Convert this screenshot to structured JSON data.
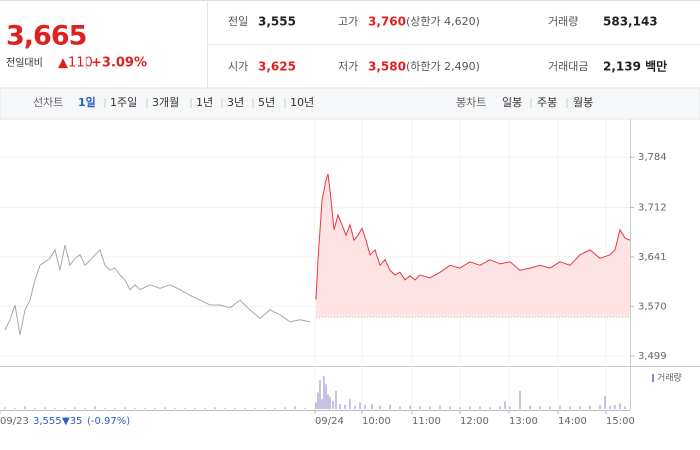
{
  "header": {
    "price": "3,665",
    "change_label": "전일대비",
    "change": "▲110",
    "change_pct": "+3.09%",
    "stats": [
      {
        "label": "전일",
        "value": "3,555"
      },
      {
        "label": "고가",
        "value": "3,760",
        "note": "(상한가 4,620)",
        "color": "#e0201f"
      },
      {
        "label": "거래량",
        "value": "583,143"
      },
      {
        "label": "시가",
        "value": "3,625",
        "color": "#e0201f"
      },
      {
        "label": "저가",
        "value": "3,580",
        "note": "(하한가 2,490)",
        "color": "#e0201f"
      },
      {
        "label": "거래대금",
        "value": "2,139 백만"
      }
    ]
  },
  "tabs": {
    "line_label": "선차트",
    "line": [
      "1일",
      "1주일",
      "3개월",
      "1년",
      "3년",
      "5년",
      "10년"
    ],
    "candle_label": "봉차트",
    "candle": [
      "일봉",
      "주봉",
      "월봉"
    ]
  },
  "footer": {
    "price": "3,555",
    "change": "▼35",
    "change_pct": "(-0.97%)"
  },
  "chart_data": {
    "type": "line",
    "xlim": [
      0,
      126
    ],
    "ylim": [
      3486,
      3823
    ],
    "yticks": [
      {
        "value": 3784,
        "label": "3,784"
      },
      {
        "value": 3712,
        "label": "3,712"
      },
      {
        "value": 3641,
        "label": "3,641"
      },
      {
        "value": 3570,
        "label": "3,570"
      },
      {
        "value": 3499,
        "label": "3,499"
      }
    ],
    "xticks": [
      {
        "value": 0,
        "label": "09/23"
      },
      {
        "value": 63,
        "label": "09/24"
      },
      {
        "value": 72.4,
        "label": "10:00"
      },
      {
        "value": 82.4,
        "label": "11:00"
      },
      {
        "value": 92,
        "label": "12:00"
      },
      {
        "value": 101.8,
        "label": "13:00"
      },
      {
        "value": 111.6,
        "label": "14:00"
      },
      {
        "value": 121.2,
        "label": "15:00"
      }
    ],
    "grid": true,
    "reference": 3555,
    "series": [
      {
        "color": "#a8a8a8",
        "x": [
          1,
          2,
          3,
          4,
          5,
          6,
          7,
          8,
          9,
          10,
          11,
          12,
          13,
          14,
          15,
          16,
          17,
          18,
          19,
          20,
          21,
          22,
          23,
          24,
          25,
          26,
          27,
          28,
          30,
          32,
          34,
          36,
          38,
          40,
          42,
          44,
          46,
          48,
          50,
          52,
          54,
          56,
          58,
          60,
          62
        ],
        "values": [
          3536,
          3551,
          3572,
          3529,
          3565,
          3579,
          3608,
          3629,
          3634,
          3639,
          3651,
          3622,
          3658,
          3629,
          3639,
          3644,
          3629,
          3636,
          3644,
          3651,
          3629,
          3622,
          3625,
          3615,
          3608,
          3594,
          3601,
          3594,
          3601,
          3596,
          3601,
          3594,
          3586,
          3579,
          3572,
          3572,
          3568,
          3579,
          3565,
          3553,
          3565,
          3558,
          3548,
          3551,
          3548
        ]
      },
      {
        "color": "#e8383d",
        "fill": "#fde3e4",
        "x": [
          63.2,
          63.6,
          64.4,
          65.2,
          65.6,
          66,
          66.8,
          67.6,
          68.4,
          69.2,
          70,
          70.8,
          71.6,
          72.4,
          73.2,
          74,
          75,
          76,
          77,
          78,
          79,
          80,
          81,
          82,
          83,
          84,
          86,
          88,
          90,
          92,
          94,
          96,
          98,
          100,
          102,
          104,
          106,
          108,
          110,
          112,
          114,
          116,
          118,
          120,
          122,
          123,
          124,
          125,
          126
        ],
        "values": [
          3580,
          3637,
          3722,
          3751,
          3760,
          3737,
          3680,
          3701,
          3687,
          3672,
          3687,
          3665,
          3672,
          3682,
          3665,
          3644,
          3651,
          3629,
          3637,
          3622,
          3615,
          3619,
          3608,
          3614,
          3608,
          3615,
          3611,
          3619,
          3629,
          3625,
          3634,
          3629,
          3637,
          3631,
          3634,
          3622,
          3625,
          3629,
          3625,
          3634,
          3629,
          3644,
          3651,
          3639,
          3644,
          3651,
          3680,
          3668,
          3665
        ]
      }
    ],
    "volume": {
      "name": "거래량",
      "color": "#8f84c9",
      "ylim": [
        0,
        45
      ],
      "x": [
        1,
        3,
        5,
        7,
        9,
        11,
        13,
        15,
        17,
        19,
        21,
        23,
        25,
        27,
        29,
        31,
        33,
        35,
        37,
        39,
        41,
        43,
        45,
        47,
        49,
        51,
        53,
        55,
        57,
        59,
        61,
        63.2,
        63.6,
        64,
        64.4,
        64.8,
        65.2,
        65.6,
        66,
        66.6,
        67.2,
        68,
        69,
        70,
        71,
        72,
        73,
        74.4,
        76,
        78,
        80,
        82,
        84,
        86,
        88,
        90,
        92,
        94,
        96,
        98,
        100,
        101,
        102,
        104,
        106,
        108,
        110,
        112,
        114,
        116,
        118,
        120,
        121,
        122,
        123,
        124,
        125
      ],
      "values": [
        2,
        1,
        3,
        1,
        2,
        1,
        1,
        2,
        1,
        3,
        1,
        1,
        2,
        1,
        1,
        1,
        2,
        1,
        1,
        1,
        1,
        2,
        1,
        1,
        1,
        1,
        1,
        1,
        2,
        3,
        1,
        8,
        20,
        35,
        12,
        40,
        30,
        18,
        15,
        10,
        22,
        6,
        5,
        12,
        4,
        8,
        5,
        6,
        4,
        5,
        3,
        4,
        3,
        3,
        4,
        3,
        2,
        3,
        3,
        2,
        3,
        9,
        3,
        22,
        4,
        3,
        3,
        4,
        3,
        3,
        4,
        5,
        16,
        4,
        5,
        7,
        3
      ]
    }
  }
}
